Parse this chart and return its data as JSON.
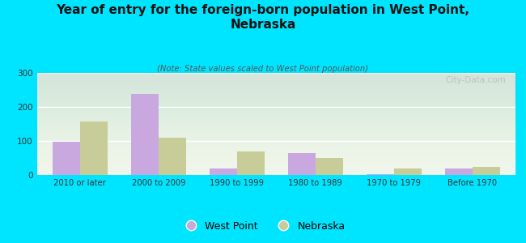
{
  "title": "Year of entry for the foreign-born population in West Point,\nNebraska",
  "subtitle": "(Note: State values scaled to West Point population)",
  "categories": [
    "2010 or later",
    "2000 to 2009",
    "1990 to 1999",
    "1980 to 1989",
    "1970 to 1979",
    "Before 1970"
  ],
  "west_point": [
    98,
    237,
    20,
    65,
    3,
    18
  ],
  "nebraska": [
    158,
    110,
    70,
    50,
    18,
    23
  ],
  "west_point_color": "#c9a8e0",
  "nebraska_color": "#c8cc99",
  "background_color": "#00e5ff",
  "ylim": [
    0,
    300
  ],
  "yticks": [
    0,
    100,
    200,
    300
  ],
  "bar_width": 0.35,
  "watermark": "City-Data.com",
  "legend_west_point": "West Point",
  "legend_nebraska": "Nebraska"
}
